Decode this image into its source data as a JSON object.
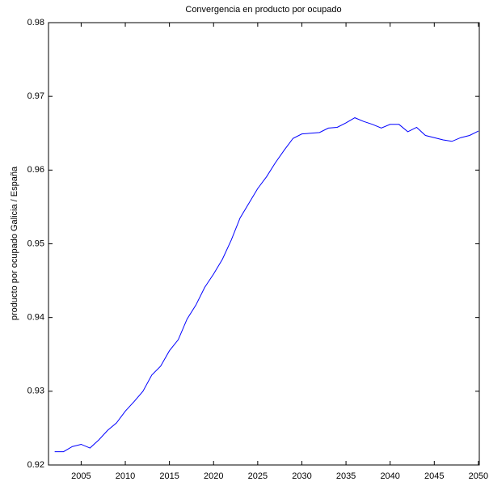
{
  "chart_data": {
    "type": "line",
    "title": "Convergencia en producto por ocupado",
    "ylabel": "producto por ocupado Galicia / España",
    "x": [
      2002,
      2003,
      2004,
      2005,
      2006,
      2007,
      2008,
      2009,
      2010,
      2011,
      2012,
      2013,
      2014,
      2015,
      2016,
      2017,
      2018,
      2019,
      2020,
      2021,
      2022,
      2023,
      2024,
      2025,
      2026,
      2027,
      2028,
      2029,
      2030,
      2031,
      2032,
      2033,
      2034,
      2035,
      2036,
      2037,
      2038,
      2039,
      2040,
      2041,
      2042,
      2043,
      2044,
      2045,
      2046,
      2047,
      2048,
      2049,
      2050
    ],
    "series": [
      {
        "color": "#0000ff",
        "values": [
          0.9218,
          0.9218,
          0.9225,
          0.9228,
          0.9223,
          0.9234,
          0.9247,
          0.9257,
          0.9273,
          0.9286,
          0.93,
          0.9322,
          0.9334,
          0.9355,
          0.937,
          0.9398,
          0.9417,
          0.9441,
          0.9459,
          0.9479,
          0.9505,
          0.9535,
          0.9555,
          0.9575,
          0.9591,
          0.961,
          0.9627,
          0.9643,
          0.9649,
          0.965,
          0.9651,
          0.9657,
          0.9658,
          0.9664,
          0.9671,
          0.9666,
          0.9662,
          0.9657,
          0.9662,
          0.9662,
          0.9652,
          0.9658,
          0.9647,
          0.9644,
          0.9641,
          0.9639,
          0.9644,
          0.9647,
          0.9653
        ]
      }
    ],
    "xlim": [
      2001.3,
      2050.1
    ],
    "xticks": [
      2005,
      2010,
      2015,
      2020,
      2025,
      2030,
      2035,
      2040,
      2045,
      2050
    ],
    "ylim": [
      0.92,
      0.98
    ],
    "yticks": [
      0.92,
      0.93,
      0.94,
      0.95,
      0.96,
      0.97,
      0.98
    ]
  }
}
